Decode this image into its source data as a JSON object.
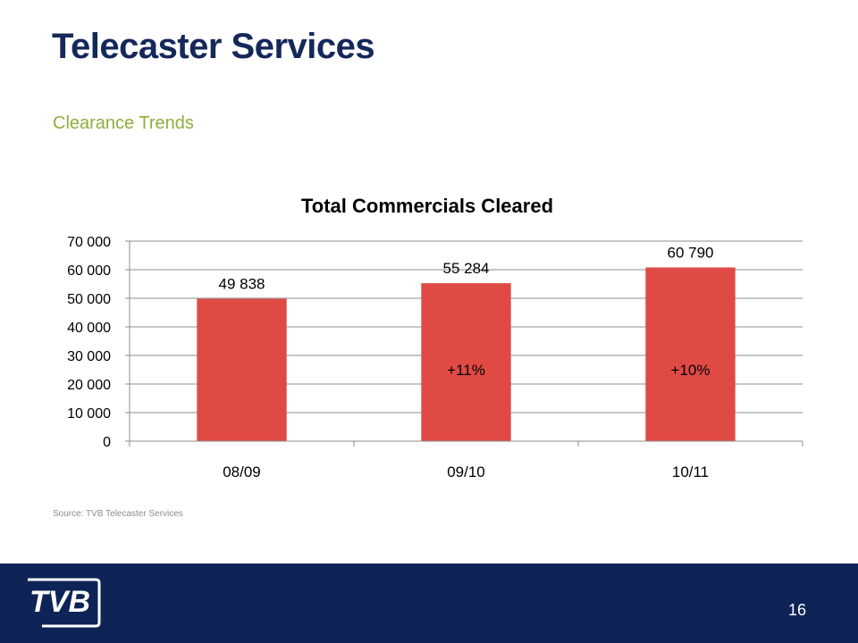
{
  "slide": {
    "title": "Telecaster Services",
    "subtitle": "Clearance Trends",
    "source": "Source: TVB Telecaster Services",
    "page_number": "16",
    "logo_text": "TVB"
  },
  "colors": {
    "title": "#14285a",
    "subtitle": "#8fae3d",
    "bar": "#e04a45",
    "footer": "#0e2356"
  },
  "chart_data": {
    "type": "bar",
    "title": "Total Commercials Cleared",
    "xlabel": "",
    "ylabel": "",
    "categories": [
      "08/09",
      "09/10",
      "10/11"
    ],
    "values": [
      49838,
      55284,
      60790
    ],
    "value_labels": [
      "49 838",
      "55 284",
      "60 790"
    ],
    "growth_labels": [
      "",
      "+11%",
      "+10%"
    ],
    "ylim": [
      0,
      70000
    ],
    "yticks": [
      0,
      10000,
      20000,
      30000,
      40000,
      50000,
      60000,
      70000
    ],
    "ytick_labels": [
      "0",
      "10 000",
      "20 000",
      "30 000",
      "40 000",
      "50 000",
      "60 000",
      "70 000"
    ],
    "grid": true,
    "legend": "none"
  }
}
